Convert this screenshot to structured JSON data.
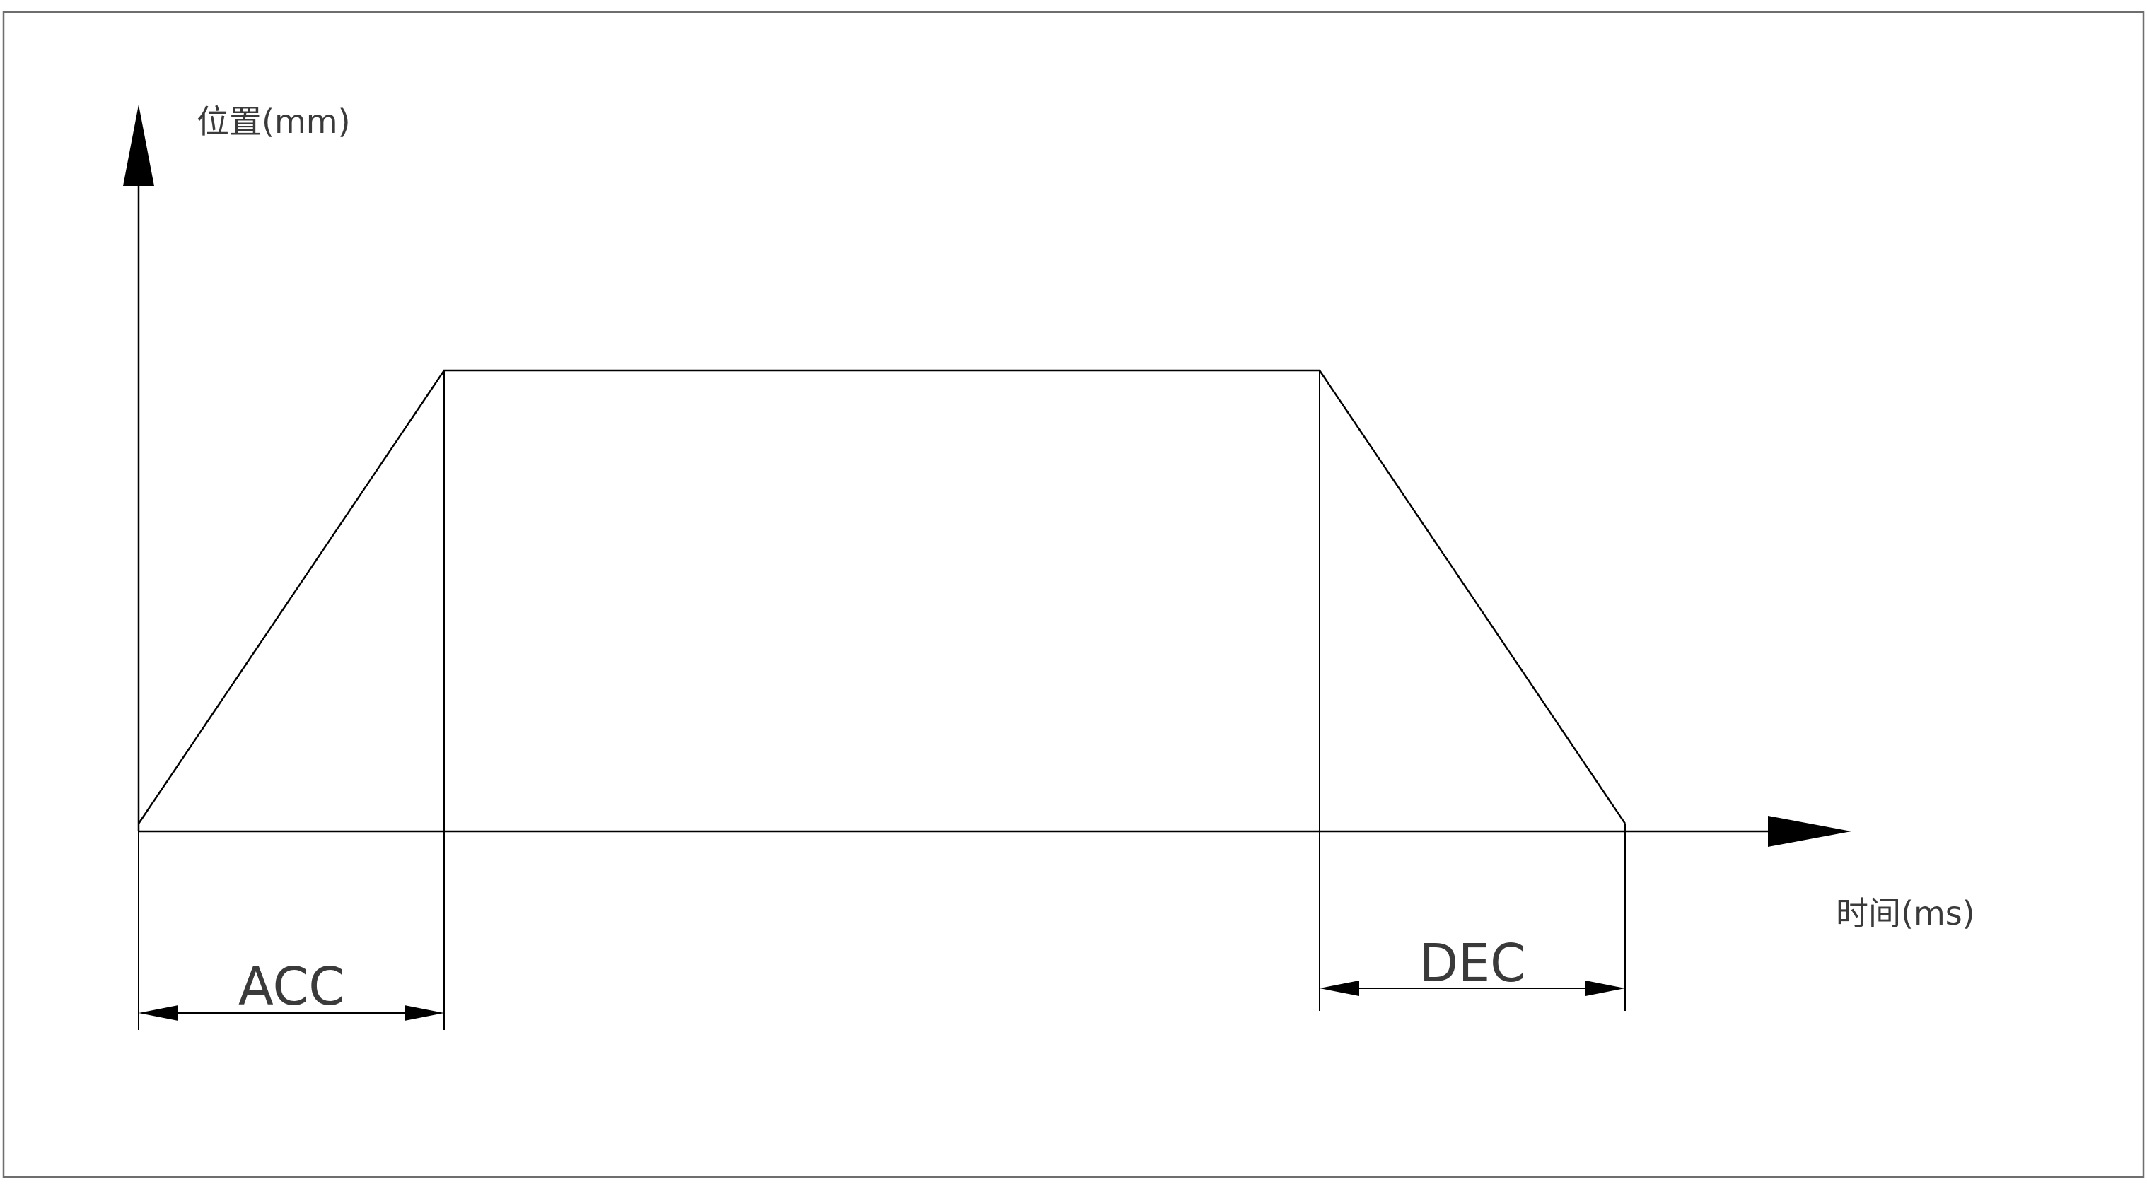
{
  "diagram": {
    "y_axis_label": "位置(mm)",
    "x_axis_label": "时间(ms)",
    "segments": [
      {
        "id": "acc",
        "label": "ACC"
      },
      {
        "id": "dec",
        "label": "DEC"
      }
    ]
  },
  "colors": {
    "line": "#000000",
    "frame": "#6e6e6e",
    "text": "#3a3a3a",
    "background": "#ffffff"
  }
}
